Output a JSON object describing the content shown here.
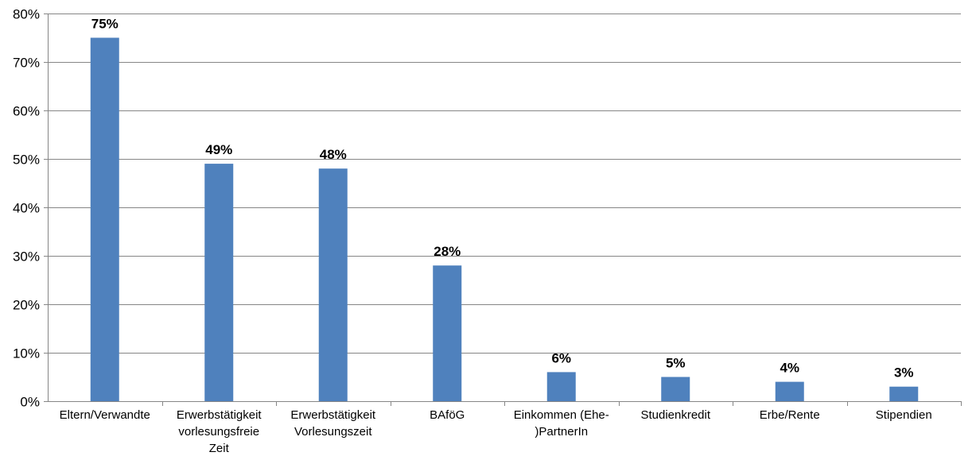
{
  "chart_data": {
    "type": "bar",
    "categories": [
      [
        "Eltern/Verwandte"
      ],
      [
        "Erwerbstätigkeit",
        "vorlesungsfreie",
        "Zeit"
      ],
      [
        "Erwerbstätigkeit",
        "Vorlesungszeit"
      ],
      [
        "BAföG"
      ],
      [
        "Einkommen (Ehe-",
        ")PartnerIn"
      ],
      [
        "Studienkredit"
      ],
      [
        "Erbe/Rente"
      ],
      [
        "Stipendien"
      ]
    ],
    "values": [
      0.75,
      0.49,
      0.48,
      0.28,
      0.06,
      0.05,
      0.04,
      0.03
    ],
    "data_labels": [
      "75%",
      "49%",
      "48%",
      "28%",
      "6%",
      "5%",
      "4%",
      "3%"
    ],
    "y_ticks": [
      "0%",
      "10%",
      "20%",
      "30%",
      "40%",
      "50%",
      "60%",
      "70%",
      "80%"
    ],
    "ylim": [
      0,
      0.8
    ],
    "grid": true,
    "legend": "none",
    "title": "",
    "xlabel": "",
    "ylabel": "",
    "colors": {
      "bar": "#4f81bd",
      "grid": "#868686",
      "axis": "#868686"
    }
  }
}
